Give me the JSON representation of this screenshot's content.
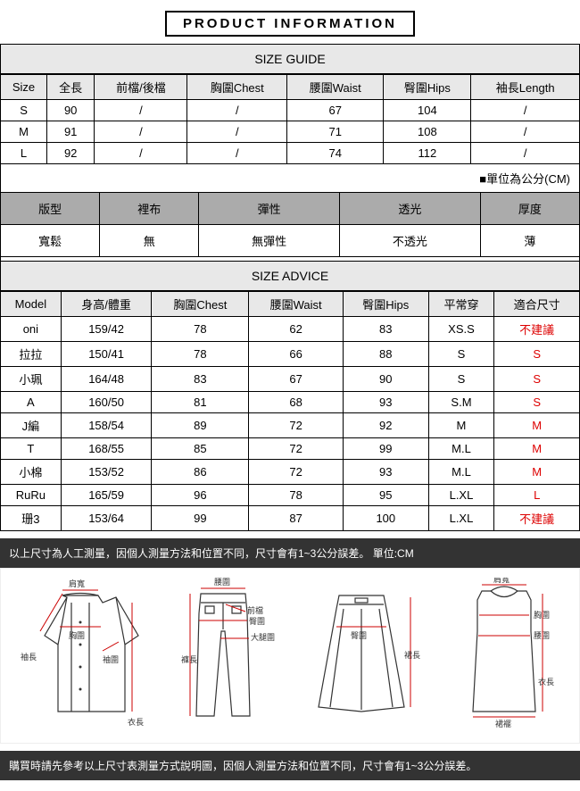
{
  "header": {
    "title": "PRODUCT INFORMATION"
  },
  "sizeGuide": {
    "title": "SIZE GUIDE",
    "columns": [
      "Size",
      "全長",
      "前檔/後檔",
      "胸圍Chest",
      "腰圍Waist",
      "臀圍Hips",
      "袖長Length"
    ],
    "rows": [
      [
        "S",
        "90",
        "/",
        "/",
        "67",
        "104",
        "/"
      ],
      [
        "M",
        "91",
        "/",
        "/",
        "71",
        "108",
        "/"
      ],
      [
        "L",
        "92",
        "/",
        "/",
        "74",
        "112",
        "/"
      ]
    ],
    "unitNote": "■單位為公分(CM)"
  },
  "props": {
    "columns": [
      "版型",
      "裡布",
      "彈性",
      "透光",
      "厚度"
    ],
    "values": [
      "寬鬆",
      "無",
      "無彈性",
      "不透光",
      "薄"
    ]
  },
  "advice": {
    "title": "SIZE ADVICE",
    "columns": [
      "Model",
      "身高/體重",
      "胸圍Chest",
      "腰圍Waist",
      "臀圍Hips",
      "平常穿",
      "適合尺寸"
    ],
    "rows": [
      {
        "cells": [
          "oni",
          "159/42",
          "78",
          "62",
          "83",
          "XS.S"
        ],
        "fit": "不建議",
        "red": true
      },
      {
        "cells": [
          "拉拉",
          "150/41",
          "78",
          "66",
          "88",
          "S"
        ],
        "fit": "S",
        "red": true
      },
      {
        "cells": [
          "小珮",
          "164/48",
          "83",
          "67",
          "90",
          "S"
        ],
        "fit": "S",
        "red": true
      },
      {
        "cells": [
          "A",
          "160/50",
          "81",
          "68",
          "93",
          "S.M"
        ],
        "fit": "S",
        "red": true
      },
      {
        "cells": [
          "J編",
          "158/54",
          "89",
          "72",
          "92",
          "M"
        ],
        "fit": "M",
        "red": true
      },
      {
        "cells": [
          "T",
          "168/55",
          "85",
          "72",
          "99",
          "M.L"
        ],
        "fit": "M",
        "red": true
      },
      {
        "cells": [
          "小棉",
          "153/52",
          "86",
          "72",
          "93",
          "M.L"
        ],
        "fit": "M",
        "red": true
      },
      {
        "cells": [
          "RuRu",
          "165/59",
          "96",
          "78",
          "95",
          "L.XL"
        ],
        "fit": "L",
        "red": true
      },
      {
        "cells": [
          "珊3",
          "153/64",
          "99",
          "87",
          "100",
          "L.XL"
        ],
        "fit": "不建議",
        "red": true
      }
    ]
  },
  "notes": {
    "top": "以上尺寸為人工測量，因個人測量方法和位置不同，尺寸會有1~3公分誤差。 單位:CM",
    "bottom": "購買時請先參考以上尺寸表測量方式說明圖，因個人測量方法和位置不同，尺寸會有1~3公分誤差。"
  },
  "diagram": {
    "labels": {
      "shoulder": "肩寬",
      "chest": "胸圍",
      "sleeve": "袖長",
      "sleeveOpen": "袖圍",
      "length": "衣長",
      "waist": "腰圍",
      "frontRise": "前檔",
      "hip": "臀圍",
      "thigh": "大腿圍",
      "pantLen": "褲長",
      "skirtLen": "裙長",
      "hem": "裙襬"
    }
  }
}
